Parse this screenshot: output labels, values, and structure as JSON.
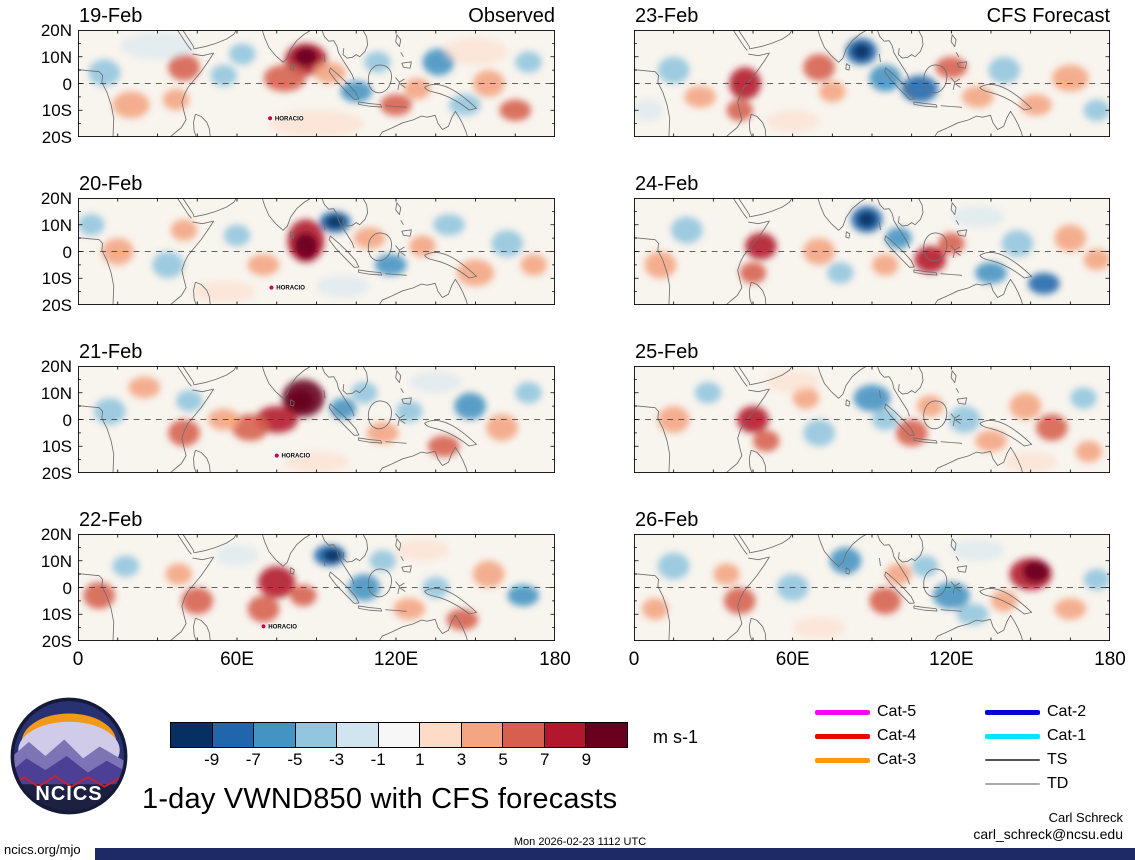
{
  "figure": {
    "title": "1-day VWND850 with CFS forecasts",
    "columns": [
      {
        "label": "Observed"
      },
      {
        "label": "CFS Forecast"
      }
    ],
    "y_tick_labels": [
      "20N",
      "10N",
      "0",
      "10S",
      "20S"
    ],
    "x_tick_labels": [
      "0",
      "60E",
      "120E",
      "180"
    ]
  },
  "chart_data": {
    "type": "heatmap",
    "subtype": "filled-contour-lat-lon-panels",
    "variable": "VWND850 anomaly",
    "units": "m s-1",
    "lon_range": [
      0,
      180
    ],
    "lat_range": [
      -20,
      20
    ],
    "value_range": [
      -11,
      11
    ],
    "panels": [
      {
        "date": "19-Feb",
        "column": "Observed",
        "storm": {
          "label": "HORACIO",
          "lon": 72.5,
          "lat": -13
        },
        "blobs": [
          [
            86,
            9,
            8,
            6,
            8
          ],
          [
            86,
            10,
            4.5,
            3.5,
            10
          ],
          [
            78,
            2,
            8,
            5,
            6
          ],
          [
            95,
            4,
            6,
            4,
            4
          ],
          [
            40,
            6,
            6,
            5,
            6
          ],
          [
            37,
            -6,
            5,
            4,
            4
          ],
          [
            55,
            3,
            5,
            4,
            -4
          ],
          [
            62,
            11,
            5,
            4,
            -4
          ],
          [
            10,
            4,
            6,
            5,
            -4
          ],
          [
            20,
            -8,
            7,
            5,
            4
          ],
          [
            105,
            -3,
            6,
            4,
            -6
          ],
          [
            113,
            8,
            5,
            4,
            -4
          ],
          [
            120,
            -8,
            6,
            4,
            6
          ],
          [
            128,
            -2,
            5,
            4,
            4
          ],
          [
            136,
            8,
            6,
            5,
            -6
          ],
          [
            146,
            -8,
            6,
            4,
            -4
          ],
          [
            155,
            0,
            6,
            5,
            4
          ],
          [
            165,
            -10,
            6,
            4,
            6
          ],
          [
            170,
            8,
            5,
            4,
            -4
          ],
          [
            90,
            -15,
            18,
            5,
            2
          ],
          [
            30,
            14,
            14,
            5,
            -2
          ],
          [
            150,
            12,
            12,
            5,
            2
          ]
        ]
      },
      {
        "date": "20-Feb",
        "column": "Observed",
        "storm": {
          "label": "HORACIO",
          "lon": 73,
          "lat": -13.5
        },
        "blobs": [
          [
            97,
            11,
            6,
            4,
            -8
          ],
          [
            97,
            11,
            3.5,
            2.5,
            -10
          ],
          [
            86,
            4,
            7,
            8,
            8
          ],
          [
            86,
            2,
            4.5,
            5,
            10
          ],
          [
            70,
            -5,
            6,
            4,
            4
          ],
          [
            60,
            6,
            5,
            4,
            -4
          ],
          [
            40,
            8,
            5,
            4,
            4
          ],
          [
            34,
            -5,
            6,
            5,
            -4
          ],
          [
            15,
            0,
            6,
            5,
            4
          ],
          [
            5,
            10,
            5,
            4,
            -4
          ],
          [
            110,
            5,
            6,
            4,
            4
          ],
          [
            118,
            -5,
            6,
            4,
            -6
          ],
          [
            130,
            2,
            5,
            4,
            4
          ],
          [
            140,
            10,
            6,
            4,
            -4
          ],
          [
            150,
            -8,
            7,
            5,
            4
          ],
          [
            162,
            3,
            6,
            5,
            -4
          ],
          [
            172,
            -5,
            5,
            4,
            4
          ],
          [
            100,
            -13,
            10,
            4,
            -2
          ],
          [
            55,
            -15,
            12,
            4,
            2
          ]
        ]
      },
      {
        "date": "21-Feb",
        "column": "Observed",
        "storm": {
          "label": "HORACIO",
          "lon": 75,
          "lat": -13.5
        },
        "blobs": [
          [
            85,
            8,
            8,
            7,
            10
          ],
          [
            84,
            7,
            5,
            4,
            10
          ],
          [
            75,
            0,
            8,
            5,
            8
          ],
          [
            65,
            -3,
            7,
            5,
            6
          ],
          [
            55,
            0,
            6,
            4,
            4
          ],
          [
            100,
            4,
            5,
            4,
            -6
          ],
          [
            108,
            10,
            5,
            4,
            -4
          ],
          [
            40,
            -5,
            6,
            5,
            6
          ],
          [
            42,
            7,
            5,
            4,
            -4
          ],
          [
            12,
            3,
            6,
            5,
            -4
          ],
          [
            25,
            12,
            6,
            4,
            4
          ],
          [
            115,
            -5,
            6,
            4,
            4
          ],
          [
            125,
            3,
            5,
            4,
            -4
          ],
          [
            138,
            -10,
            6,
            4,
            6
          ],
          [
            148,
            5,
            6,
            5,
            -6
          ],
          [
            160,
            -3,
            6,
            5,
            4
          ],
          [
            170,
            10,
            5,
            4,
            -4
          ],
          [
            90,
            -16,
            12,
            4,
            2
          ],
          [
            135,
            14,
            10,
            4,
            -2
          ]
        ]
      },
      {
        "date": "22-Feb",
        "column": "Observed",
        "storm": {
          "label": "HORACIO",
          "lon": 70,
          "lat": -14.5
        },
        "blobs": [
          [
            95,
            12,
            6,
            4,
            -8
          ],
          [
            96,
            12,
            3.5,
            2.5,
            -10
          ],
          [
            75,
            2,
            7,
            6,
            8
          ],
          [
            70,
            -8,
            6,
            5,
            6
          ],
          [
            85,
            -3,
            5,
            4,
            6
          ],
          [
            45,
            -5,
            6,
            5,
            6
          ],
          [
            38,
            5,
            5,
            4,
            4
          ],
          [
            8,
            -3,
            6,
            5,
            6
          ],
          [
            18,
            8,
            5,
            4,
            -4
          ],
          [
            108,
            0,
            6,
            5,
            -6
          ],
          [
            115,
            10,
            5,
            4,
            -4
          ],
          [
            125,
            -8,
            6,
            4,
            4
          ],
          [
            135,
            0,
            5,
            4,
            -4
          ],
          [
            145,
            -12,
            6,
            4,
            6
          ],
          [
            155,
            5,
            6,
            5,
            4
          ],
          [
            168,
            -3,
            6,
            4,
            -6
          ],
          [
            60,
            12,
            8,
            4,
            -2
          ],
          [
            130,
            14,
            10,
            4,
            2
          ]
        ]
      },
      {
        "date": "23-Feb",
        "column": "CFS Forecast",
        "storm": null,
        "blobs": [
          [
            86,
            12,
            6,
            5,
            -8
          ],
          [
            86,
            12,
            3.5,
            3,
            -10
          ],
          [
            95,
            2,
            6,
            5,
            -6
          ],
          [
            70,
            6,
            6,
            5,
            6
          ],
          [
            75,
            -3,
            5,
            4,
            4
          ],
          [
            42,
            0,
            6,
            6,
            8
          ],
          [
            40,
            -10,
            5,
            4,
            6
          ],
          [
            15,
            5,
            6,
            5,
            -4
          ],
          [
            25,
            -5,
            6,
            4,
            4
          ],
          [
            108,
            -2,
            7,
            5,
            -8
          ],
          [
            120,
            6,
            6,
            4,
            6
          ],
          [
            130,
            -5,
            6,
            4,
            4
          ],
          [
            140,
            5,
            6,
            5,
            -4
          ],
          [
            152,
            -8,
            6,
            4,
            4
          ],
          [
            165,
            2,
            7,
            5,
            4
          ],
          [
            175,
            -10,
            5,
            4,
            -4
          ],
          [
            60,
            -14,
            10,
            4,
            2
          ],
          [
            5,
            -10,
            6,
            4,
            -2
          ]
        ]
      },
      {
        "date": "24-Feb",
        "column": "CFS Forecast",
        "storm": null,
        "blobs": [
          [
            88,
            12,
            6,
            5,
            -8
          ],
          [
            88,
            12,
            3.5,
            3,
            -10
          ],
          [
            48,
            2,
            6,
            5,
            8
          ],
          [
            45,
            -8,
            5,
            4,
            6
          ],
          [
            70,
            0,
            6,
            5,
            4
          ],
          [
            78,
            -8,
            5,
            4,
            -4
          ],
          [
            100,
            5,
            5,
            4,
            -6
          ],
          [
            95,
            -5,
            5,
            4,
            4
          ],
          [
            112,
            -3,
            6,
            5,
            8
          ],
          [
            120,
            3,
            5,
            4,
            6
          ],
          [
            135,
            -8,
            6,
            4,
            -6
          ],
          [
            145,
            3,
            6,
            5,
            -4
          ],
          [
            155,
            -12,
            6,
            4,
            -8
          ],
          [
            165,
            5,
            6,
            5,
            4
          ],
          [
            175,
            -3,
            5,
            4,
            4
          ],
          [
            20,
            8,
            6,
            5,
            -4
          ],
          [
            10,
            -5,
            6,
            5,
            4
          ],
          [
            130,
            13,
            10,
            4,
            -2
          ]
        ]
      },
      {
        "date": "25-Feb",
        "column": "CFS Forecast",
        "storm": null,
        "blobs": [
          [
            90,
            8,
            7,
            5,
            -6
          ],
          [
            95,
            0,
            5,
            4,
            -4
          ],
          [
            45,
            0,
            6,
            5,
            8
          ],
          [
            50,
            -8,
            5,
            4,
            6
          ],
          [
            70,
            -5,
            6,
            5,
            -4
          ],
          [
            65,
            8,
            5,
            4,
            4
          ],
          [
            105,
            -5,
            6,
            5,
            6
          ],
          [
            112,
            5,
            5,
            4,
            4
          ],
          [
            125,
            0,
            6,
            5,
            -4
          ],
          [
            135,
            -8,
            6,
            4,
            4
          ],
          [
            148,
            5,
            6,
            5,
            4
          ],
          [
            158,
            -3,
            6,
            5,
            6
          ],
          [
            170,
            8,
            5,
            4,
            -4
          ],
          [
            172,
            -12,
            5,
            4,
            4
          ],
          [
            15,
            0,
            6,
            5,
            4
          ],
          [
            28,
            10,
            5,
            4,
            -4
          ],
          [
            60,
            14,
            10,
            4,
            2
          ],
          [
            150,
            -16,
            10,
            4,
            2
          ]
        ]
      },
      {
        "date": "26-Feb",
        "column": "CFS Forecast",
        "storm": null,
        "blobs": [
          [
            150,
            5,
            8,
            6,
            8
          ],
          [
            152,
            6,
            5,
            4,
            10
          ],
          [
            120,
            -3,
            7,
            5,
            -6
          ],
          [
            128,
            -10,
            6,
            4,
            -4
          ],
          [
            95,
            -5,
            6,
            5,
            6
          ],
          [
            100,
            5,
            5,
            4,
            4
          ],
          [
            80,
            10,
            6,
            5,
            -6
          ],
          [
            40,
            -5,
            6,
            5,
            6
          ],
          [
            35,
            5,
            5,
            4,
            4
          ],
          [
            60,
            0,
            6,
            5,
            -4
          ],
          [
            15,
            8,
            6,
            5,
            -4
          ],
          [
            8,
            -8,
            5,
            4,
            4
          ],
          [
            110,
            8,
            5,
            4,
            -4
          ],
          [
            140,
            -5,
            5,
            4,
            4
          ],
          [
            165,
            -8,
            6,
            4,
            4
          ],
          [
            175,
            3,
            5,
            4,
            -4
          ],
          [
            70,
            -15,
            10,
            4,
            2
          ],
          [
            130,
            14,
            10,
            4,
            -2
          ]
        ]
      }
    ]
  },
  "colorbar": {
    "colors": [
      "#053061",
      "#2166ac",
      "#4393c3",
      "#92c5de",
      "#d1e5f0",
      "#f7f7f7",
      "#fddbc7",
      "#f4a582",
      "#d6604d",
      "#b2182b",
      "#67001f"
    ],
    "tick_labels": [
      "-9",
      "-7",
      "-5",
      "-3",
      "-1",
      "1",
      "3",
      "5",
      "7",
      "9"
    ],
    "units": "m s-1"
  },
  "legend": {
    "items": [
      {
        "label": "Cat-5",
        "color": "#ff00ff",
        "weight": 5
      },
      {
        "label": "Cat-4",
        "color": "#ee0000",
        "weight": 5
      },
      {
        "label": "Cat-3",
        "color": "#ff9900",
        "weight": 5
      },
      {
        "label": "Cat-2",
        "color": "#0000dd",
        "weight": 5
      },
      {
        "label": "Cat-1",
        "color": "#00e6ff",
        "weight": 5
      },
      {
        "label": "TS",
        "color": "#555555",
        "weight": 2.5
      },
      {
        "label": "TD",
        "color": "#aaaaaa",
        "weight": 1.5
      }
    ]
  },
  "logo": {
    "text": "NCICS"
  },
  "footer": {
    "link": "ncics.org/mjo",
    "timestamp": "Mon 2026-02-23 1112 UTC",
    "credit_name": "Carl Schreck",
    "credit_email": "carl_schreck@ncsu.edu"
  }
}
